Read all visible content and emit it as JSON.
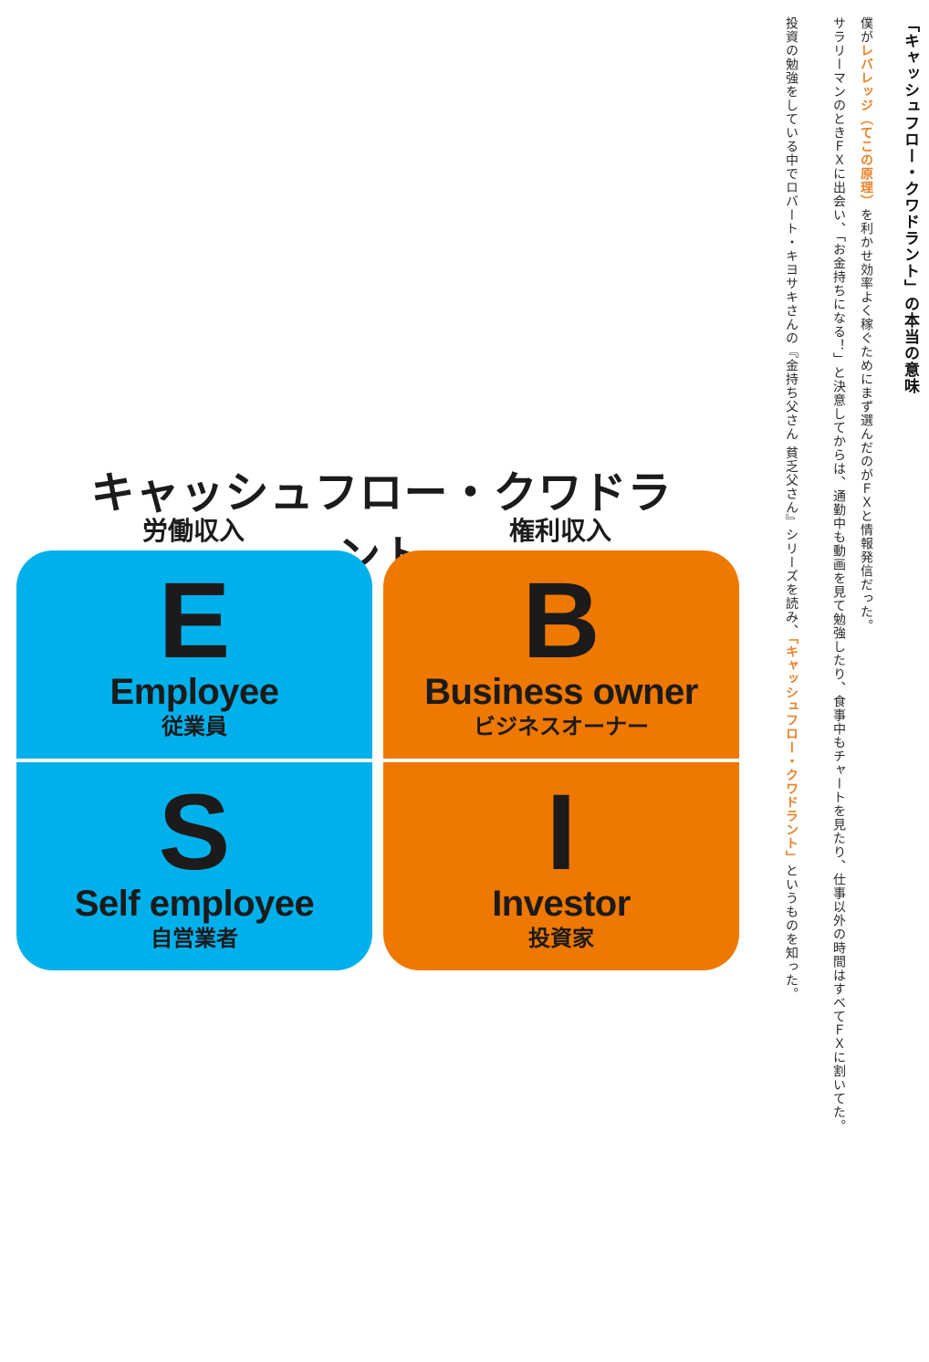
{
  "article": {
    "title": "「キャッシュフロー・クワドラント」の本当の意味",
    "line1_before": "僕が",
    "line1_highlight": "レバレッジ（てこの原理）",
    "line1_after": "を利かせ効率よく稼ぐためにまず選んだのがＦＸと情報発信だった。",
    "line2": "サラリーマンのときＦＸに出会い、「お金持ちになる！」と決意してからは、通勤中も動画を見て勉強したり、食事中もチャートを見たり、仕事以外の時間はすべてＦＸに割いてた。",
    "line3_before": "投資の勉強をしている中でロバート・キヨサキさんの『金持ち父さん 貧乏父さん』シリーズを読み、",
    "line3_highlight": "「キャッシュフロー・クワドラント」",
    "line3_after": "というものを知った。",
    "accent_color": "#e9832a"
  },
  "diagram": {
    "title": "キャッシュフロー・クワドラント",
    "left_heading": "労働収入",
    "right_heading": "権利収入",
    "colors": {
      "left": "#00b0ea",
      "right": "#ee7800"
    },
    "quadrants": {
      "e": {
        "letter": "E",
        "english": "Employee",
        "japanese": "従業員"
      },
      "b": {
        "letter": "B",
        "english": "Business owner",
        "japanese": "ビジネスオーナー"
      },
      "s": {
        "letter": "S",
        "english": "Self employee",
        "japanese": "自営業者"
      },
      "i": {
        "letter": "I",
        "english": "Investor",
        "japanese": "投資家"
      }
    }
  }
}
